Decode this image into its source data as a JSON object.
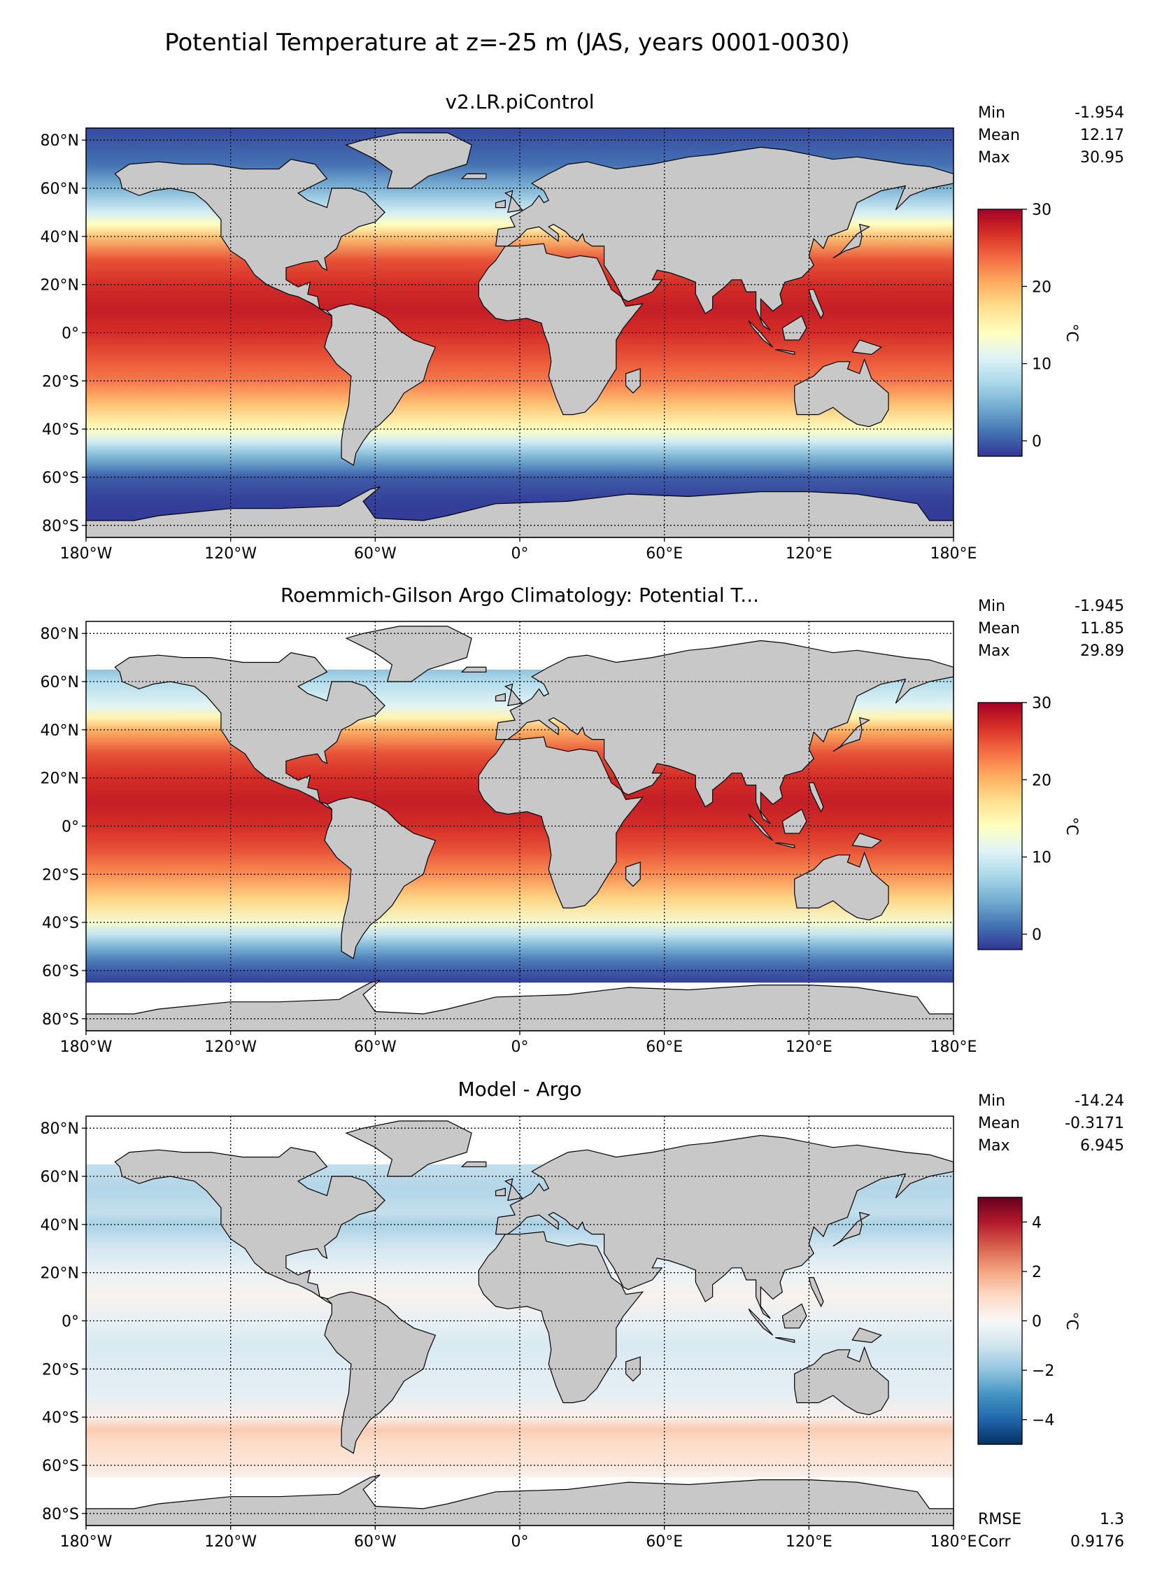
{
  "figure_title": "Potential Temperature at z=-25 m (JAS, years 0001-0030)",
  "colors": {
    "land": "#c8c8c8",
    "missing": "#ffffff",
    "frame": "#000000",
    "grid": "#000000"
  },
  "chart_data": [
    {
      "type": "heatmap",
      "title": "v2.LR.piControl",
      "xlabel": "",
      "ylabel": "",
      "xlim": [
        -180,
        180
      ],
      "ylim": [
        -85,
        85
      ],
      "x_ticks": [
        -180,
        -120,
        -60,
        0,
        60,
        120,
        180
      ],
      "x_tick_labels": [
        "180°W",
        "120°W",
        "60°W",
        "0°",
        "60°E",
        "120°E",
        "180°E"
      ],
      "y_ticks": [
        80,
        60,
        40,
        20,
        0,
        -20,
        -40,
        -60,
        -80
      ],
      "y_tick_labels": [
        "80°N",
        "60°N",
        "40°N",
        "20°N",
        "0°",
        "20°S",
        "40°S",
        "60°S",
        "80°S"
      ],
      "grid": "dotted",
      "colorbar": {
        "label": "°C",
        "range": [
          -2,
          30
        ],
        "ticks": [
          0,
          10,
          20,
          30
        ],
        "tick_labels": [
          "0",
          "10",
          "20",
          "30"
        ],
        "colormap": "RdYlBu_r"
      },
      "stats": [
        {
          "name": "Min",
          "value": "-1.954"
        },
        {
          "name": "Mean",
          "value": "12.17"
        },
        {
          "name": "Max",
          "value": "30.95"
        }
      ],
      "zonal_profile": {
        "lat": [
          85,
          70,
          60,
          50,
          45,
          40,
          30,
          20,
          10,
          0,
          -10,
          -20,
          -30,
          -40,
          -45,
          -50,
          -55,
          -60,
          -70,
          -85
        ],
        "value": [
          -1,
          1,
          5,
          10,
          14,
          19,
          25,
          27,
          28,
          27,
          25,
          23,
          19,
          14,
          10,
          6,
          3,
          0,
          -1.5,
          -1.9
        ]
      }
    },
    {
      "type": "heatmap",
      "title": "Roemmich-Gilson Argo Climatology: Potential T...",
      "xlabel": "",
      "ylabel": "",
      "xlim": [
        -180,
        180
      ],
      "ylim": [
        -85,
        85
      ],
      "x_ticks": [
        -180,
        -120,
        -60,
        0,
        60,
        120,
        180
      ],
      "x_tick_labels": [
        "180°W",
        "120°W",
        "60°W",
        "0°",
        "60°E",
        "120°E",
        "180°E"
      ],
      "y_ticks": [
        80,
        60,
        40,
        20,
        0,
        -20,
        -40,
        -60,
        -80
      ],
      "y_tick_labels": [
        "80°N",
        "60°N",
        "40°N",
        "20°N",
        "0°",
        "20°S",
        "40°S",
        "60°S",
        "80°S"
      ],
      "grid": "dotted",
      "coverage_lat": [
        -65,
        65
      ],
      "colorbar": {
        "label": "°C",
        "range": [
          -2,
          30
        ],
        "ticks": [
          0,
          10,
          20,
          30
        ],
        "tick_labels": [
          "0",
          "10",
          "20",
          "30"
        ],
        "colormap": "RdYlBu_r"
      },
      "stats": [
        {
          "name": "Min",
          "value": "-1.945"
        },
        {
          "name": "Mean",
          "value": "11.85"
        },
        {
          "name": "Max",
          "value": "29.89"
        }
      ],
      "zonal_profile": {
        "lat": [
          65,
          60,
          50,
          45,
          40,
          30,
          20,
          10,
          0,
          -10,
          -20,
          -30,
          -40,
          -45,
          -50,
          -55,
          -60,
          -65
        ],
        "value": [
          6,
          8,
          11,
          15,
          20,
          25,
          27,
          28,
          27,
          25,
          22,
          18,
          13,
          9,
          5,
          2,
          0,
          -1.5
        ]
      }
    },
    {
      "type": "heatmap",
      "title": "Model - Argo",
      "xlabel": "",
      "ylabel": "",
      "xlim": [
        -180,
        180
      ],
      "ylim": [
        -85,
        85
      ],
      "x_ticks": [
        -180,
        -120,
        -60,
        0,
        60,
        120,
        180
      ],
      "x_tick_labels": [
        "180°W",
        "120°W",
        "60°W",
        "0°",
        "60°E",
        "120°E",
        "180°E"
      ],
      "y_ticks": [
        80,
        60,
        40,
        20,
        0,
        -20,
        -40,
        -60,
        -80
      ],
      "y_tick_labels": [
        "80°N",
        "60°N",
        "40°N",
        "20°N",
        "0°",
        "20°S",
        "40°S",
        "60°S",
        "80°S"
      ],
      "grid": "dotted",
      "coverage_lat": [
        -65,
        65
      ],
      "colorbar": {
        "label": "°C",
        "range": [
          -5,
          5
        ],
        "ticks": [
          4,
          2,
          0,
          -2,
          -4
        ],
        "tick_labels": [
          "4",
          "2",
          "0",
          "−2",
          "−4"
        ],
        "colormap": "RdBu_r"
      },
      "stats": [
        {
          "name": "Min",
          "value": "-14.24"
        },
        {
          "name": "Mean",
          "value": "-0.3171"
        },
        {
          "name": "Max",
          "value": "6.945"
        }
      ],
      "extra_stats": [
        {
          "name": "RMSE",
          "value": "1.3"
        },
        {
          "name": "Corr",
          "value": "0.9176"
        }
      ],
      "zonal_profile": {
        "lat": [
          65,
          55,
          45,
          40,
          30,
          20,
          10,
          0,
          -10,
          -20,
          -30,
          -40,
          -45,
          -50,
          -55,
          -60,
          -65
        ],
        "value": [
          -1.2,
          -1.5,
          -1.2,
          -1.6,
          -0.9,
          -0.3,
          0.2,
          -0.4,
          -0.8,
          -0.6,
          -0.5,
          0.3,
          1.3,
          1.0,
          0.8,
          0.6,
          0.2
        ]
      }
    }
  ]
}
